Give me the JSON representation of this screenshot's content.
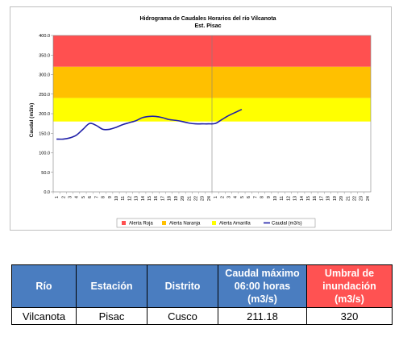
{
  "chart_data": {
    "type": "line",
    "title": "Hidrograma de Caudales Horarios del río Vilcanota",
    "subtitle": "Est. Pisac",
    "ylabel": "Caudal (m3/s)",
    "ylim": [
      0,
      400
    ],
    "yticks": [
      "0.0",
      "50.0",
      "100.0",
      "150.0",
      "200.0",
      "250.0",
      "300.0",
      "350.0",
      "400.0"
    ],
    "x_labels": [
      "1",
      "2",
      "3",
      "4",
      "5",
      "6",
      "7",
      "8",
      "9",
      "10",
      "11",
      "12",
      "13",
      "14",
      "15",
      "16",
      "17",
      "18",
      "19",
      "20",
      "21",
      "22",
      "23",
      "24",
      "1",
      "2",
      "3",
      "4",
      "5",
      "6",
      "7",
      "8",
      "9",
      "10",
      "11",
      "12",
      "13",
      "14",
      "15",
      "16",
      "17",
      "18",
      "19",
      "20",
      "21",
      "22",
      "23",
      "24"
    ],
    "bands": [
      {
        "name": "Alerta Roja",
        "from": 320,
        "to": 400,
        "color": "#ff5050"
      },
      {
        "name": "Alerta Naranja",
        "from": 240,
        "to": 320,
        "color": "#ffc000"
      },
      {
        "name": "Alerta Amarilla",
        "from": 180,
        "to": 240,
        "color": "#ffff00"
      }
    ],
    "series": [
      {
        "name": "Caudal (m3/s)",
        "color": "#1f1fa8",
        "values": [
          135,
          135,
          138,
          145,
          160,
          175,
          170,
          160,
          160,
          165,
          172,
          177,
          182,
          190,
          193,
          193,
          190,
          185,
          183,
          180,
          176,
          174,
          174,
          174,
          175,
          185,
          195,
          203,
          211
        ]
      }
    ],
    "legend_position": "bottom",
    "grid": false
  },
  "table": {
    "headers": [
      "Río",
      "Estación",
      "Distrito",
      "Caudal máximo 06:00 horas (m3/s)",
      "Umbral de inundación (m3/s)"
    ],
    "rows": [
      [
        "Vilcanota",
        "Pisac",
        "Cusco",
        "211.18",
        "320"
      ]
    ]
  }
}
